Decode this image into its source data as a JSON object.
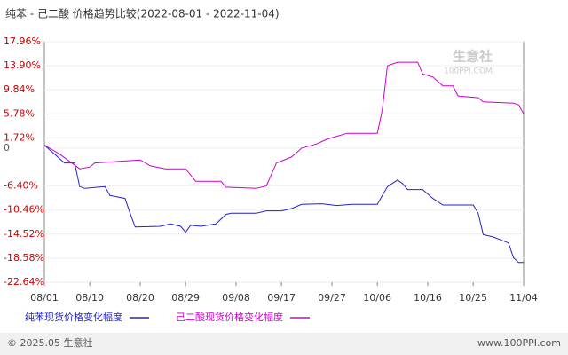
{
  "chart_data": {
    "type": "line",
    "title": "纯苯 - 己二酸 价格趋势比较(2022-08-01 - 2022-11-04)",
    "watermark": [
      "生意社",
      "100PPI.COM"
    ],
    "footer": [
      "© 2025.05 生意社",
      "www.100PPI.com"
    ],
    "xlim": [
      "08/01",
      "11/04"
    ],
    "xticks": [
      "08/01",
      "08/10",
      "08/20",
      "08/29",
      "09/08",
      "09/17",
      "09/27",
      "10/06",
      "10/16",
      "10/25",
      "11/04"
    ],
    "ylim": [
      -22.64,
      17.96
    ],
    "yticks": [
      {
        "value": -22.64,
        "label": "-22.64%"
      },
      {
        "value": -18.58,
        "label": "-18.58%"
      },
      {
        "value": -14.52,
        "label": "-14.52%"
      },
      {
        "value": -10.46,
        "label": "-10.46%"
      },
      {
        "value": -6.4,
        "label": "-6.40%"
      },
      0,
      {
        "value": 1.72,
        "label": "1.72%"
      },
      {
        "value": 5.78,
        "label": "5.78%"
      },
      {
        "value": 9.84,
        "label": "9.84%"
      },
      {
        "value": 13.9,
        "label": "13.90%"
      },
      {
        "value": 17.96,
        "label": "17.96%"
      }
    ],
    "series": [
      {
        "name": "纯苯现货价格变化幅度",
        "color": "#2222cc",
        "x": [
          "08/01",
          "08/03",
          "08/05",
          "08/07",
          "08/08",
          "08/09",
          "08/13",
          "08/14",
          "08/17",
          "08/18",
          "08/19",
          "08/24",
          "08/26",
          "08/28",
          "08/29",
          "08/30",
          "09/01",
          "09/04",
          "09/06",
          "09/07",
          "09/12",
          "09/14",
          "09/17",
          "09/19",
          "09/21",
          "09/25",
          "09/28",
          "10/01",
          "10/06",
          "10/08",
          "10/10",
          "10/11",
          "10/12",
          "10/15",
          "10/17",
          "10/19",
          "10/25",
          "10/26",
          "10/27",
          "10/29",
          "11/01",
          "11/02",
          "11/03",
          "11/04"
        ],
        "values": [
          0.5,
          -1,
          -2.5,
          -2.5,
          -6.5,
          -6.8,
          -6.5,
          -8,
          -8.5,
          -11,
          -13.3,
          -13.2,
          -12.8,
          -13.2,
          -14.2,
          -13,
          -13.2,
          -12.8,
          -11.2,
          -11,
          -11,
          -10.6,
          -10.6,
          -10.2,
          -9.5,
          -9.4,
          -9.7,
          -9.5,
          -9.5,
          -6.5,
          -5.4,
          -6,
          -7,
          -7,
          -8.5,
          -9.6,
          -9.6,
          -11,
          -14.6,
          -15,
          -16,
          -18.5,
          -19.3,
          -19.3
        ]
      },
      {
        "name": "己二酸现货价格变化幅度",
        "color": "#cc00cc",
        "x": [
          "08/01",
          "08/04",
          "08/08",
          "08/10",
          "08/11",
          "08/20",
          "08/22",
          "08/25",
          "08/29",
          "08/31",
          "09/05",
          "09/06",
          "09/12",
          "09/14",
          "09/16",
          "09/19",
          "09/21",
          "09/24",
          "09/26",
          "09/30",
          "10/06",
          "10/07",
          "10/08",
          "10/10",
          "10/14",
          "10/15",
          "10/17",
          "10/19",
          "10/21",
          "10/22",
          "10/26",
          "10/27",
          "11/02",
          "11/03",
          "11/04"
        ],
        "values": [
          0.5,
          -1,
          -3.5,
          -3.2,
          -2.5,
          -2,
          -3,
          -3.5,
          -3.5,
          -5.6,
          -5.6,
          -6.6,
          -6.8,
          -6.4,
          -2.5,
          -1.5,
          0,
          0.7,
          1.5,
          2.5,
          2.5,
          6.5,
          13.9,
          14.5,
          14.5,
          12.5,
          12,
          10.5,
          10.5,
          8.8,
          8.5,
          7.8,
          7.6,
          7.3,
          5.8
        ]
      }
    ]
  }
}
